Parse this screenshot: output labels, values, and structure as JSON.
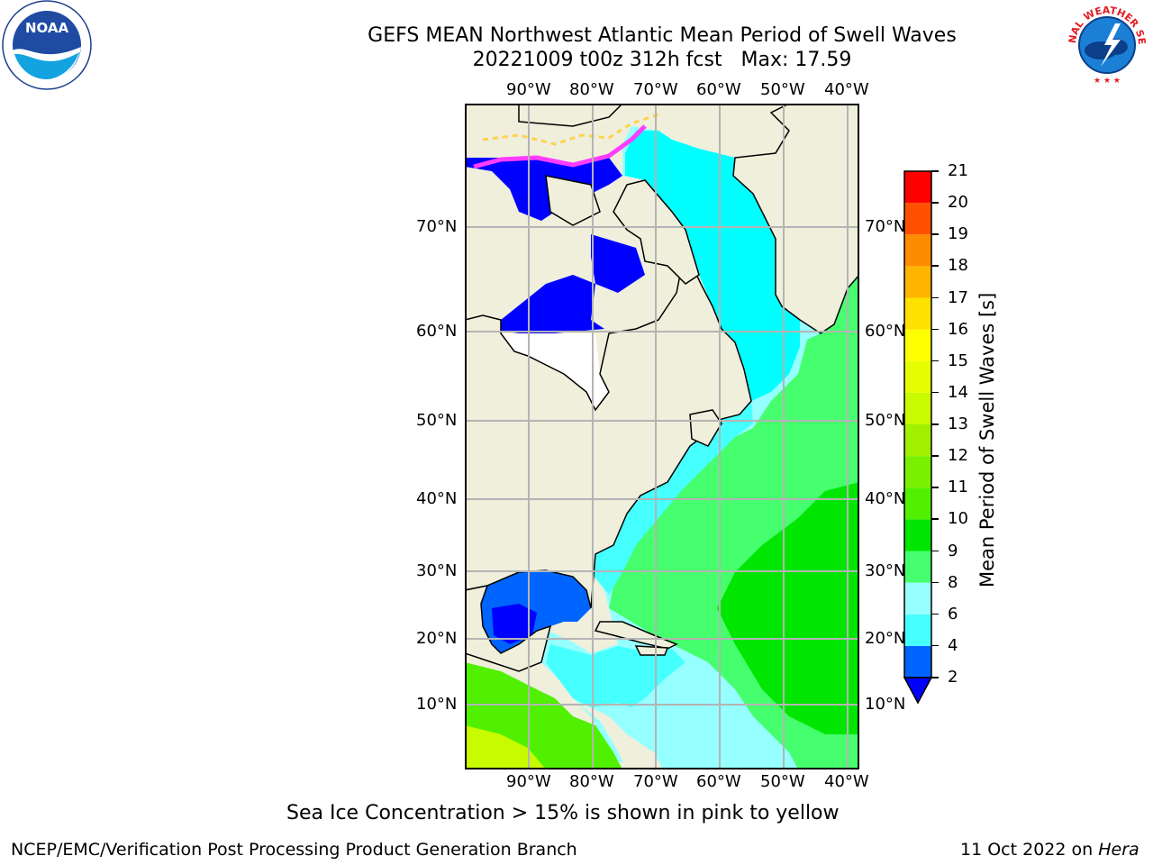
{
  "title": {
    "line1": "GEFS MEAN Northwest Atlantic Mean Period of Swell Waves",
    "line2": "20221009 t00z 312h fcst   Max: 17.59"
  },
  "map": {
    "lon_ticks": [
      "90°W",
      "80°W",
      "70°W",
      "60°W",
      "50°W",
      "40°W"
    ],
    "lat_ticks": [
      "70°N",
      "60°N",
      "50°N",
      "40°N",
      "30°N",
      "20°N",
      "10°N"
    ],
    "land_color": "#efefdc",
    "ocean_colors": {
      "swell_2_4": "#0064ff",
      "swell_4_6": "#00ffff",
      "swell_6_8": "#46ffff",
      "swell_8_9": "#96ffff",
      "swell_9_10": "#46ff6e",
      "swell_10_11": "#00e600",
      "swell_11_12": "#50f000",
      "below_2": "#0000ff",
      "sea_ice_pink": "#ff3cff",
      "sea_ice_yellow": "#ffd250"
    }
  },
  "colorbar": {
    "label": "Mean Period of Swell Waves [s]",
    "ticks": [
      "2",
      "4",
      "6",
      "8",
      "9",
      "10",
      "11",
      "12",
      "13",
      "14",
      "15",
      "16",
      "17",
      "18",
      "19",
      "20",
      "21"
    ],
    "colors": [
      "#0064ff",
      "#00ffff",
      "#46ffff",
      "#96ffff",
      "#46ff6e",
      "#00e600",
      "#50f000",
      "#78f000",
      "#a0f000",
      "#c8fa00",
      "#e6ff00",
      "#ffff00",
      "#ffe100",
      "#ffb400",
      "#ff8c00",
      "#ff5000",
      "#ff0000"
    ],
    "under_color": "#0000ff"
  },
  "footnote": "Sea Ice Concentration > 15% is shown in pink to yellow",
  "credit_left": "NCEP/EMC/Verification Post Processing Product Generation Branch",
  "credit_date": "11 Oct 2022 on ",
  "credit_host": "Hera",
  "logos": {
    "noaa_text": "NOAA",
    "nws_text": "NATIONAL WEATHER SERVICE"
  }
}
